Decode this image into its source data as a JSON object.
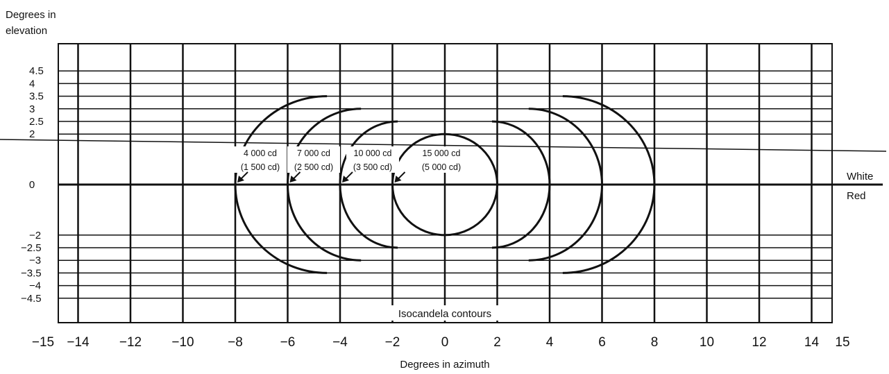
{
  "y_axis_title_line1": "Degrees in",
  "y_axis_title_line2": "elevation",
  "x_axis_title": "Degrees in azimuth",
  "caption": "Isocandela contours",
  "side_labels": {
    "upper": "White",
    "lower": "Red"
  },
  "x_ticks": [
    "−15",
    "−14",
    "−12",
    "−10",
    "−8",
    "−6",
    "−4",
    "−2",
    "0",
    "2",
    "4",
    "6",
    "8",
    "10",
    "12",
    "14",
    "15"
  ],
  "y_ticks": [
    "4.5",
    "4",
    "3.5",
    "3",
    "2.5",
    "2",
    "0",
    "−2",
    "−2.5",
    "−3",
    "−3.5",
    "−4",
    "−4.5"
  ],
  "contours": [
    {
      "id": "c4000",
      "line1": "4 000 cd",
      "line2": "(1 500 cd)",
      "half_width_deg": 8,
      "half_height_deg": 3.5
    },
    {
      "id": "c7000",
      "line1": "7 000 cd",
      "line2": "(2 500 cd)",
      "half_width_deg": 6,
      "half_height_deg": 3
    },
    {
      "id": "c10000",
      "line1": "10 000 cd",
      "line2": "(3 500 cd)",
      "half_width_deg": 4,
      "half_height_deg": 2.5
    },
    {
      "id": "c15000",
      "line1": "15 000  cd",
      "line2": "(5 000  cd)",
      "half_width_deg": 2,
      "half_height_deg": 2
    }
  ]
}
